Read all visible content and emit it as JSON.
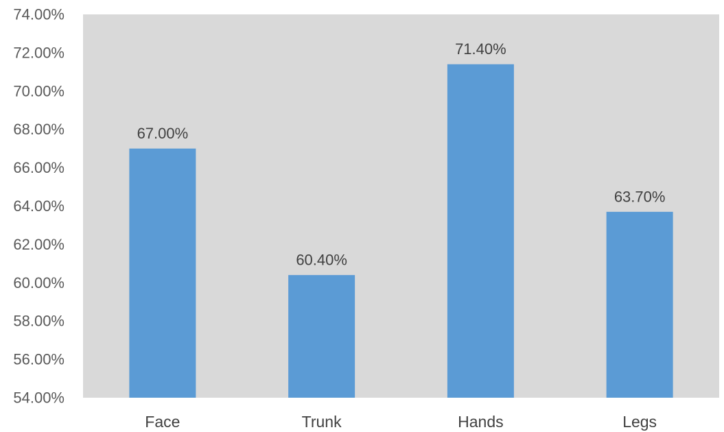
{
  "chart_data": {
    "type": "bar",
    "title": "",
    "xlabel": "",
    "ylabel": "",
    "categories": [
      "Face",
      "Trunk",
      "Hands",
      "Legs"
    ],
    "values": [
      67.0,
      60.4,
      71.4,
      63.7
    ],
    "data_labels": [
      "67.00%",
      "60.40%",
      "71.40%",
      "63.70%"
    ],
    "ylim": [
      54,
      74
    ],
    "y_ticks": [
      54,
      56,
      58,
      60,
      62,
      64,
      66,
      68,
      70,
      72,
      74
    ],
    "y_tick_labels": [
      "54.00%",
      "56.00%",
      "58.00%",
      "60.00%",
      "62.00%",
      "64.00%",
      "66.00%",
      "68.00%",
      "70.00%",
      "72.00%",
      "74.00%"
    ],
    "grid": false,
    "legend": "none",
    "colors": {
      "bar": "#5B9BD5",
      "plot_background": "#D9D9D9",
      "page_background": "#FFFFFF"
    }
  }
}
